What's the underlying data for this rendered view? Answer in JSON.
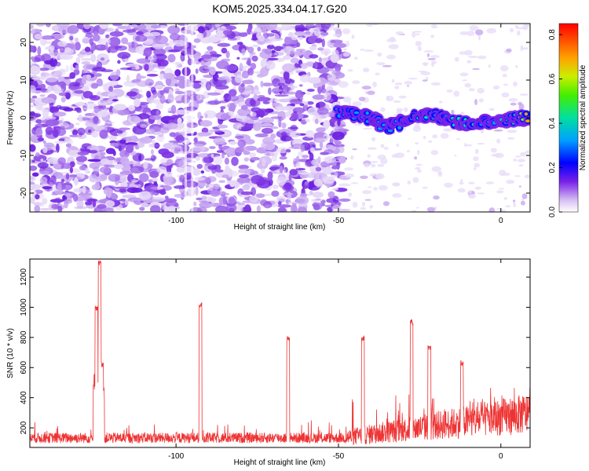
{
  "title": "KOM5.2025.334.04.17.G20",
  "spectrogram": {
    "type": "heatmap",
    "xlabel": "Height of straight line (km)",
    "ylabel": "Frequency (Hz)",
    "xlim": [
      -145,
      9
    ],
    "ylim": [
      -25,
      25
    ],
    "xticks": [
      -100,
      -50,
      0
    ],
    "xtick_labels": [
      "-100",
      "-50",
      "0"
    ],
    "yticks": [
      -20,
      -10,
      0,
      10,
      20
    ],
    "ytick_labels": [
      "-20",
      "-10",
      "0",
      "10",
      "20"
    ],
    "colorbar": {
      "label": "Normalized spectral amplitude",
      "range": [
        0,
        0.85
      ],
      "ticks": [
        0,
        0.2,
        0.4,
        0.6,
        0.8
      ],
      "tick_labels": [
        "0.0",
        "0.2",
        "0.4",
        "0.6",
        "0.8"
      ]
    },
    "noise_region_km": [
      -145,
      -48
    ],
    "signal_track": {
      "description_points_x": [
        -50,
        -45,
        -40,
        -35,
        -30,
        -25,
        -20,
        -15,
        -10,
        -5,
        0,
        5,
        8
      ],
      "frequency_hz": [
        1.5,
        1.0,
        0.0,
        -2.5,
        -1.0,
        0.5,
        0.5,
        -1.0,
        -1.5,
        -1.0,
        -1.0,
        0.0,
        0.0
      ],
      "amplitude": [
        0.35,
        0.4,
        0.35,
        0.3,
        0.35,
        0.4,
        0.4,
        0.55,
        0.5,
        0.35,
        0.4,
        0.55,
        0.8
      ]
    }
  },
  "snr": {
    "type": "line",
    "xlabel": "Height of straight line (km)",
    "ylabel": "SNR (10 * v/v)",
    "xlim": [
      -145,
      9
    ],
    "ylim": [
      70,
      1320
    ],
    "xticks": [
      -100,
      -50,
      0
    ],
    "xtick_labels": [
      "-100",
      "-50",
      "0"
    ],
    "yticks": [
      200,
      400,
      600,
      800,
      1000,
      1200
    ],
    "ytick_labels": [
      "200",
      "400",
      "600",
      "800",
      "1000",
      "1200"
    ],
    "line_color": "#ee3333",
    "peaks": [
      {
        "x": -124.5,
        "y": 1010
      },
      {
        "x": -123.5,
        "y": 1320
      },
      {
        "x": -122.8,
        "y": 640
      },
      {
        "x": -92.5,
        "y": 1040
      },
      {
        "x": -65.5,
        "y": 810
      },
      {
        "x": -42.5,
        "y": 810
      },
      {
        "x": -27.5,
        "y": 920
      },
      {
        "x": -22,
        "y": 750
      },
      {
        "x": -12,
        "y": 650
      }
    ]
  }
}
